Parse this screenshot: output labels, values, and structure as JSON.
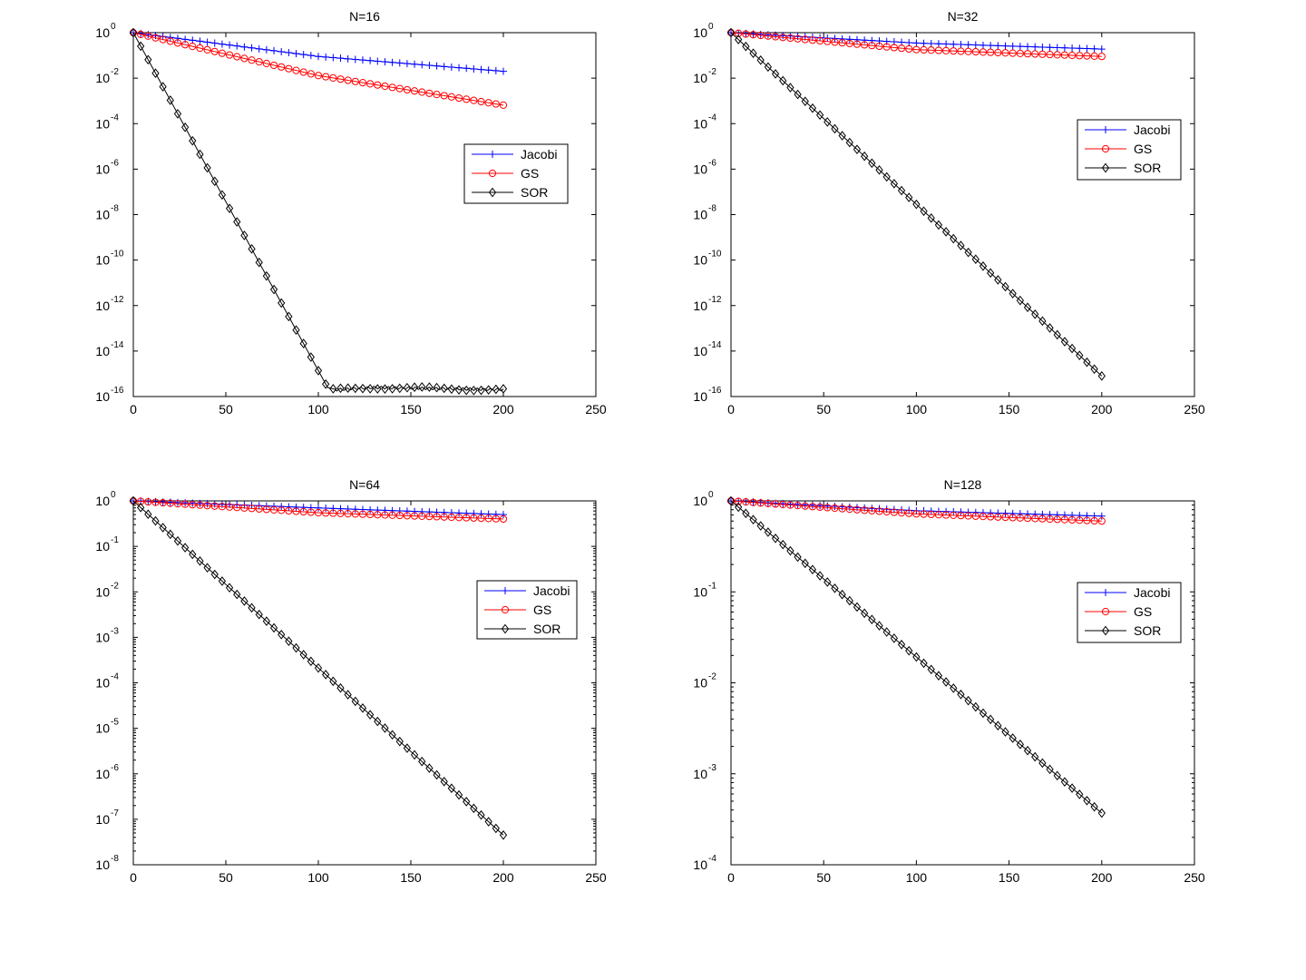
{
  "chart_data": [
    {
      "type": "line",
      "title": "N=16",
      "xlabel": "",
      "ylabel": "",
      "y_scale": "log",
      "xlim": [
        0,
        250
      ],
      "ylim_exponents": [
        -16,
        0
      ],
      "x_ticks": [
        "0",
        "50",
        "100",
        "150",
        "200",
        "250"
      ],
      "y_tick_exponents": [
        "0",
        "-2",
        "-4",
        "-6",
        "-8",
        "-10",
        "-12",
        "-14",
        "-16"
      ],
      "legend_position": "right",
      "grid": false,
      "series": [
        {
          "name": "Jacobi",
          "color": "#0000ff",
          "marker": "plus",
          "x": [
            0,
            100,
            200
          ],
          "y": [
            1,
            0.09,
            0.02
          ]
        },
        {
          "name": "GS",
          "color": "#ff0000",
          "marker": "circle",
          "x": [
            0,
            100,
            200
          ],
          "y": [
            1,
            0.013,
            0.00065
          ]
        },
        {
          "name": "SOR",
          "color": "#000000",
          "marker": "diamond",
          "x": [
            0,
            105,
            110,
            130,
            200
          ],
          "y": [
            1,
            2.5e-16,
            2e-16,
            2.5e-16,
            2e-16
          ]
        }
      ]
    },
    {
      "type": "line",
      "title": "N=32",
      "xlabel": "",
      "ylabel": "",
      "y_scale": "log",
      "xlim": [
        0,
        250
      ],
      "ylim_exponents": [
        -16,
        0
      ],
      "x_ticks": [
        "0",
        "50",
        "100",
        "150",
        "200",
        "250"
      ],
      "y_tick_exponents": [
        "0",
        "-2",
        "-4",
        "-6",
        "-8",
        "-10",
        "-12",
        "-14",
        "-16"
      ],
      "legend_position": "right",
      "grid": false,
      "series": [
        {
          "name": "Jacobi",
          "color": "#0000ff",
          "marker": "plus",
          "x": [
            0,
            100,
            200
          ],
          "y": [
            1,
            0.35,
            0.19
          ]
        },
        {
          "name": "GS",
          "color": "#ff0000",
          "marker": "circle",
          "x": [
            0,
            100,
            200
          ],
          "y": [
            1,
            0.18,
            0.09
          ]
        },
        {
          "name": "SOR",
          "color": "#000000",
          "marker": "diamond",
          "x": [
            0,
            200
          ],
          "y": [
            1,
            8e-16
          ]
        }
      ]
    },
    {
      "type": "line",
      "title": "N=64",
      "xlabel": "",
      "ylabel": "",
      "y_scale": "log",
      "xlim": [
        0,
        250
      ],
      "ylim_exponents": [
        -8,
        0
      ],
      "x_ticks": [
        "0",
        "50",
        "100",
        "150",
        "200",
        "250"
      ],
      "y_tick_exponents": [
        "0",
        "-1",
        "-2",
        "-3",
        "-4",
        "-5",
        "-6",
        "-7",
        "-8"
      ],
      "legend_position": "right",
      "grid": false,
      "series": [
        {
          "name": "Jacobi",
          "color": "#0000ff",
          "marker": "plus",
          "x": [
            0,
            100,
            200
          ],
          "y": [
            1,
            0.7,
            0.5
          ]
        },
        {
          "name": "GS",
          "color": "#ff0000",
          "marker": "circle",
          "x": [
            0,
            100,
            200
          ],
          "y": [
            1,
            0.55,
            0.4
          ]
        },
        {
          "name": "SOR",
          "color": "#000000",
          "marker": "diamond",
          "x": [
            0,
            200
          ],
          "y": [
            1,
            4.5e-08
          ]
        }
      ]
    },
    {
      "type": "line",
      "title": "N=128",
      "xlabel": "",
      "ylabel": "",
      "y_scale": "log",
      "xlim": [
        0,
        250
      ],
      "ylim_exponents": [
        -4,
        0
      ],
      "x_ticks": [
        "0",
        "50",
        "100",
        "150",
        "200",
        "250"
      ],
      "y_tick_exponents": [
        "0",
        "-1",
        "-2",
        "-3",
        "-4"
      ],
      "legend_position": "right",
      "grid": false,
      "series": [
        {
          "name": "Jacobi",
          "color": "#0000ff",
          "marker": "plus",
          "x": [
            0,
            100,
            200
          ],
          "y": [
            1,
            0.78,
            0.68
          ]
        },
        {
          "name": "GS",
          "color": "#ff0000",
          "marker": "circle",
          "x": [
            0,
            100,
            200
          ],
          "y": [
            1,
            0.72,
            0.6
          ]
        },
        {
          "name": "SOR",
          "color": "#000000",
          "marker": "diamond",
          "x": [
            0,
            200
          ],
          "y": [
            1,
            0.00037
          ]
        }
      ]
    }
  ]
}
